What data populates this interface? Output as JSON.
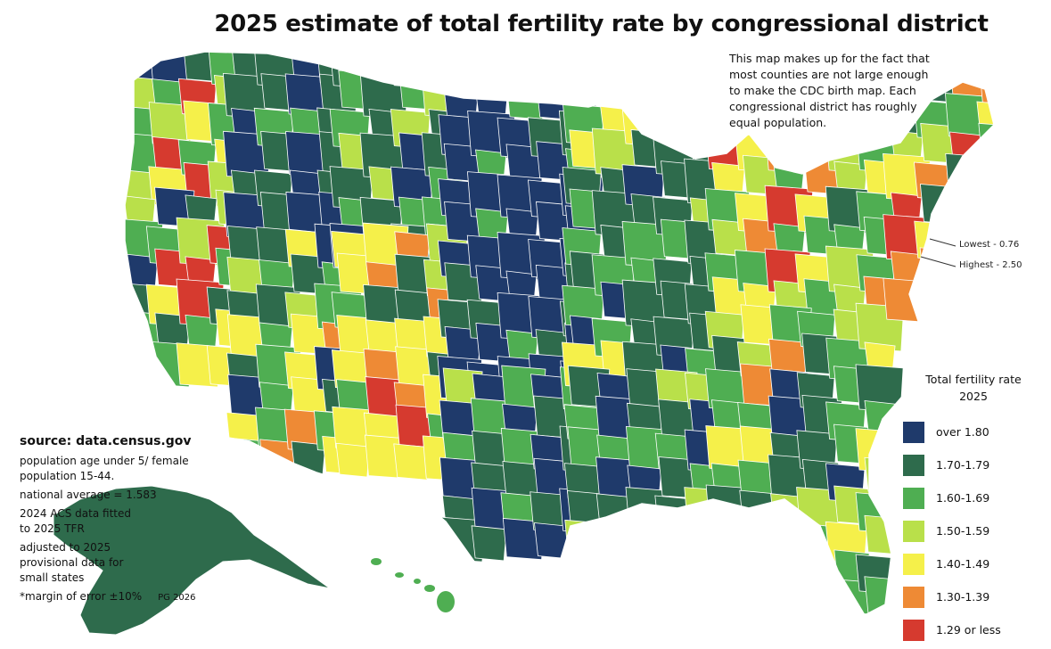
{
  "title": "2025 estimate of total fertility rate by congressional district",
  "note": "This map makes up for the fact that most counties are not large enough to make the CDC birth map. Each congressional district has roughly equal population.",
  "callouts": {
    "lowest": "Lowest - 0.76",
    "highest": "Highest - 2.50"
  },
  "source": {
    "title": "source: data.census.gov",
    "lines": [
      "population age under 5/ female population 15-44.",
      "national average = 1.583",
      "2024 ACS data fitted to 2025 TFR",
      "adjusted to 2025 provisional data for small states"
    ],
    "margin": "*margin of error ±10%",
    "credit": "PG 2026"
  },
  "legend": {
    "title_line1": "Total fertility rate",
    "title_line2": "2025",
    "items": [
      {
        "label": "over 1.80",
        "color": "#1f3a6b"
      },
      {
        "label": "1.70-1.79",
        "color": "#2e6b4c"
      },
      {
        "label": "1.60-1.69",
        "color": "#4fae52"
      },
      {
        "label": "1.50-1.59",
        "color": "#b9e04a"
      },
      {
        "label": "1.40-1.49",
        "color": "#f5f04a"
      },
      {
        "label": "1.30-1.39",
        "color": "#ee8a35"
      },
      {
        "label": "1.29 or less",
        "color": "#d63a2f"
      }
    ]
  }
}
